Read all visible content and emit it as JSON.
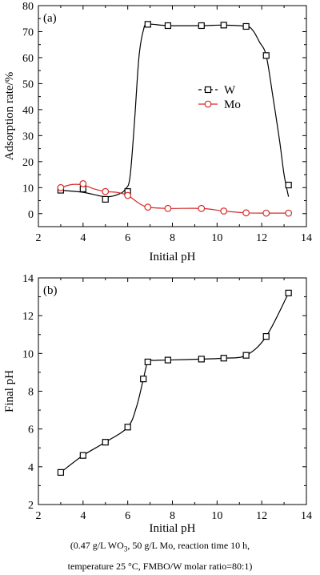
{
  "chart_data": [
    {
      "type": "line",
      "panel_label": "(a)",
      "xlabel": "Initial pH",
      "ylabel": "Adsorption rate/%",
      "xlim": [
        2,
        14
      ],
      "ylim": [
        -5,
        80
      ],
      "xticks": [
        2,
        4,
        6,
        8,
        10,
        12,
        14
      ],
      "yticks": [
        0,
        10,
        20,
        30,
        40,
        50,
        60,
        70,
        80
      ],
      "legend_position": "center-right",
      "series": [
        {
          "name": "W",
          "marker": "square",
          "color": "#000000",
          "x": [
            3.0,
            4.0,
            5.0,
            6.0,
            6.9,
            7.8,
            9.3,
            10.3,
            11.3,
            12.2,
            13.2
          ],
          "y": [
            9.0,
            9.5,
            5.5,
            8.5,
            72.8,
            72.3,
            72.3,
            72.5,
            72.0,
            60.8,
            11.0
          ],
          "curve_x": [
            3.0,
            4.0,
            5.0,
            5.6,
            5.9,
            6.1,
            6.3,
            6.5,
            6.7,
            6.9,
            7.8,
            9.3,
            10.3,
            11.3,
            11.6,
            11.9,
            12.2,
            12.5,
            12.8,
            13.0,
            13.2
          ],
          "curve_y": [
            9.0,
            8.2,
            6.5,
            7.5,
            9.5,
            14.0,
            35.0,
            60.0,
            70.5,
            72.8,
            72.3,
            72.3,
            72.5,
            72.0,
            70.5,
            66.0,
            60.8,
            45.0,
            28.0,
            15.0,
            6.5
          ]
        },
        {
          "name": "Mo",
          "marker": "circle",
          "color": "#d62a2a",
          "x": [
            3.0,
            4.0,
            5.0,
            6.0,
            6.9,
            7.8,
            9.3,
            10.3,
            11.3,
            12.2,
            13.2
          ],
          "y": [
            10.0,
            11.5,
            8.5,
            7.0,
            2.5,
            2.0,
            2.0,
            1.0,
            0.3,
            0.2,
            0.2
          ],
          "curve_x": [
            3.0,
            3.5,
            4.0,
            4.5,
            5.0,
            5.5,
            6.0,
            6.5,
            6.9,
            7.8,
            9.3,
            10.3,
            11.3,
            12.2,
            13.2
          ],
          "curve_y": [
            10.0,
            11.2,
            11.0,
            9.5,
            8.5,
            8.2,
            7.0,
            4.0,
            2.5,
            2.0,
            2.0,
            1.0,
            0.3,
            0.2,
            0.2
          ]
        }
      ]
    },
    {
      "type": "line",
      "panel_label": "(b)",
      "xlabel": "Initial pH",
      "ylabel": "Final pH",
      "xlim": [
        2,
        14
      ],
      "ylim": [
        2,
        14
      ],
      "xticks": [
        2,
        4,
        6,
        8,
        10,
        12,
        14
      ],
      "yticks": [
        2,
        4,
        6,
        8,
        10,
        12,
        14
      ],
      "series": [
        {
          "marker": "square",
          "color": "#000000",
          "x": [
            3.0,
            4.0,
            5.0,
            6.0,
            6.7,
            6.9,
            7.8,
            9.3,
            10.3,
            11.3,
            12.2,
            13.2
          ],
          "y": [
            3.7,
            4.6,
            5.3,
            6.1,
            8.65,
            9.55,
            9.65,
            9.7,
            9.75,
            9.9,
            10.9,
            13.2
          ],
          "curve_x": [
            3.0,
            4.0,
            5.0,
            6.0,
            6.4,
            6.7,
            6.9,
            7.2,
            7.8,
            9.3,
            10.3,
            11.3,
            12.2,
            13.2
          ],
          "curve_y": [
            3.7,
            4.6,
            5.3,
            6.1,
            7.2,
            8.65,
            9.55,
            9.63,
            9.65,
            9.7,
            9.75,
            9.9,
            10.9,
            13.2
          ]
        }
      ]
    }
  ],
  "caption": {
    "line1_parts": [
      "(0.47 g/L WO",
      "3",
      ", 50 g/L Mo, reaction time 10 h,"
    ],
    "line2": "temperature 25 °C, FMBO/W molar ratio=80:1)"
  }
}
